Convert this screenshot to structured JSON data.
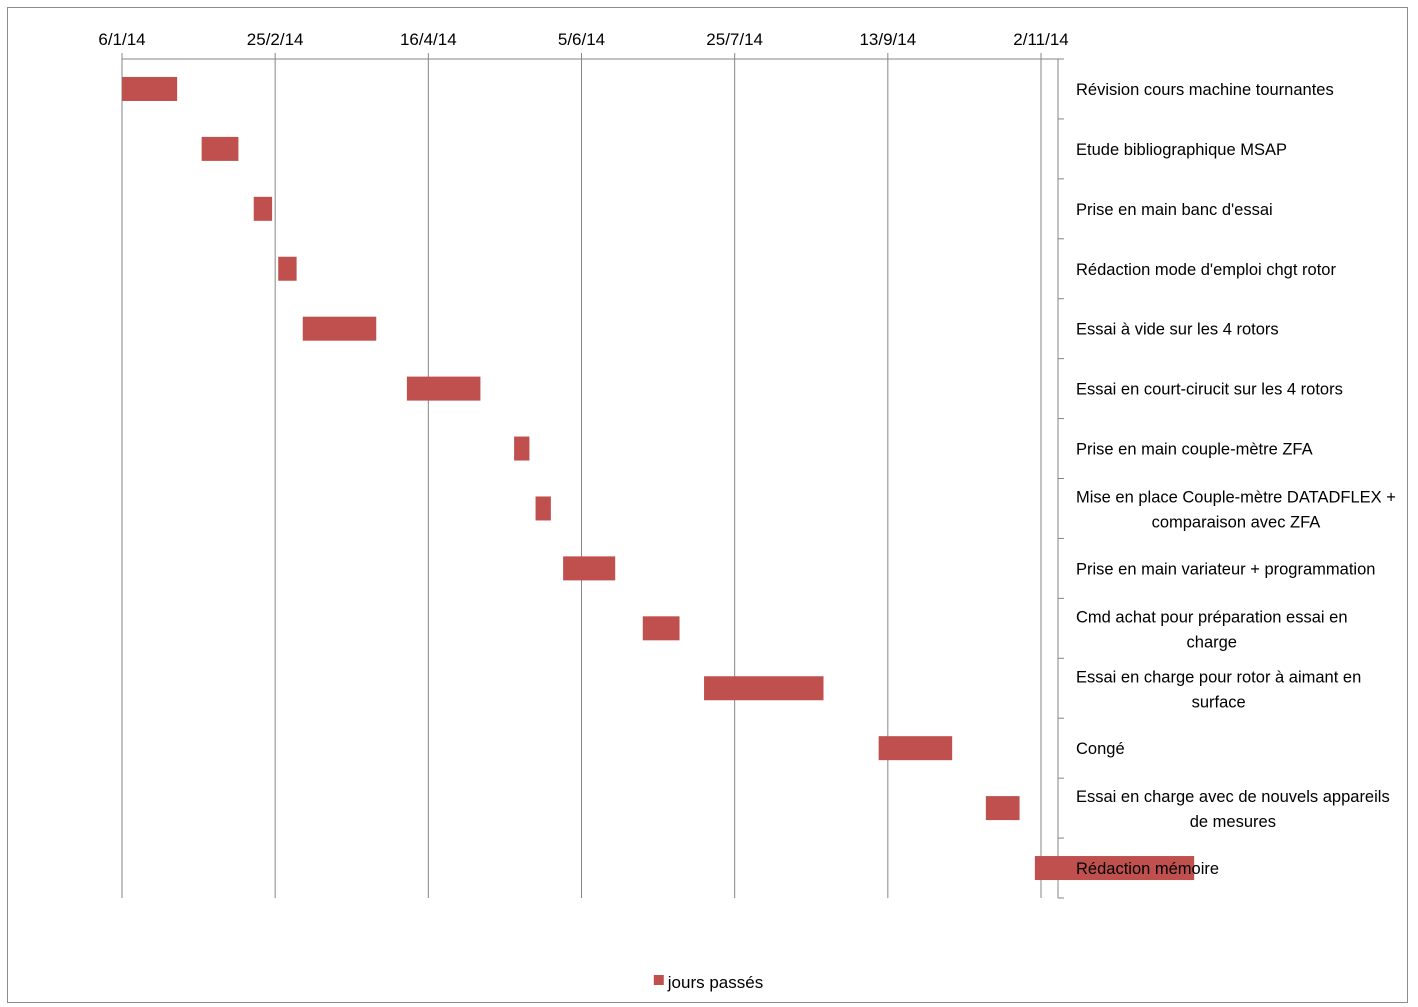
{
  "chart_data": {
    "type": "bar",
    "subtype": "gantt-horizontal",
    "x_axis": {
      "position": "top",
      "ticks": [
        "6/1/14",
        "25/2/14",
        "16/4/14",
        "5/6/14",
        "25/7/14",
        "13/9/14",
        "2/11/14"
      ],
      "range": [
        "2014-01-06",
        "2014-11-02"
      ],
      "grid": true
    },
    "y_axis": {
      "position": "right",
      "order": "top-to-bottom"
    },
    "legend": {
      "position": "bottom",
      "entries": [
        "jours passés"
      ]
    },
    "series": [
      {
        "name": "jours passés",
        "color": "#c0504d"
      }
    ],
    "tasks": [
      {
        "label": "Révision cours machine tournantes",
        "start": "2014-01-06",
        "end": "2014-01-24"
      },
      {
        "label": "Etude bibliographique MSAP",
        "start": "2014-02-01",
        "end": "2014-02-13"
      },
      {
        "label": "Prise en main banc d'essai",
        "start": "2014-02-18",
        "end": "2014-02-24"
      },
      {
        "label": "Rédaction mode d'emploi chgt rotor",
        "start": "2014-02-26",
        "end": "2014-03-04"
      },
      {
        "label": "Essai à vide sur les 4 rotors",
        "start": "2014-03-06",
        "end": "2014-03-30"
      },
      {
        "label": "Essai en court-cirucit sur les 4 rotors",
        "start": "2014-04-09",
        "end": "2014-05-03"
      },
      {
        "label": "Prise en main couple-mètre ZFA",
        "start": "2014-05-14",
        "end": "2014-05-19"
      },
      {
        "label": [
          "Mise en place Couple-mètre DATADFLEX +",
          "comparaison avec ZFA"
        ],
        "start": "2014-05-21",
        "end": "2014-05-26"
      },
      {
        "label": "Prise en main variateur + programmation",
        "start": "2014-05-30",
        "end": "2014-06-16"
      },
      {
        "label": [
          "Cmd achat pour préparation essai en",
          "charge"
        ],
        "start": "2014-06-25",
        "end": "2014-07-07"
      },
      {
        "label": [
          "Essai en charge pour rotor à aimant en",
          "surface"
        ],
        "start": "2014-07-15",
        "end": "2014-08-23"
      },
      {
        "label": "Congé",
        "start": "2014-09-10",
        "end": "2014-10-04"
      },
      {
        "label": [
          "Essai en charge avec de nouvels appareils",
          "de mesures"
        ],
        "start": "2014-10-15",
        "end": "2014-10-26"
      },
      {
        "label": "Rédaction mémoire",
        "start": "2014-10-31",
        "end": "2014-12-22"
      }
    ]
  }
}
